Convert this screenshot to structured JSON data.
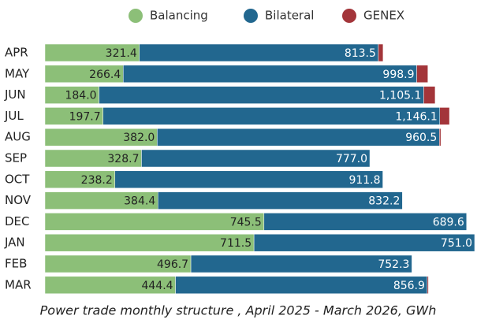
{
  "chart_data": {
    "type": "stacked-bar-horizontal",
    "caption": "Power trade monthly structure , April 2025 - March 2026, GWh",
    "categories": [
      "APR",
      "MAY",
      "JUN",
      "JUL",
      "AUG",
      "SEP",
      "OCT",
      "NOV",
      "DEC",
      "JAN",
      "FEB",
      "MAR"
    ],
    "series": [
      {
        "name": "Balancing",
        "color": "#8cbf78",
        "values": [
          321.4,
          266.4,
          184.0,
          197.7,
          382.0,
          328.7,
          238.2,
          384.4,
          745.5,
          711.5,
          496.7,
          444.4
        ],
        "value_labels": [
          "321.4",
          "266.4",
          "184.0",
          "197.7",
          "382.0",
          "328.7",
          "238.2",
          "384.4",
          "745.5",
          "711.5",
          "496.7",
          "444.4"
        ]
      },
      {
        "name": "Bilateral",
        "color": "#22678f",
        "values": [
          813.5,
          998.9,
          1105.1,
          1146.1,
          960.5,
          777.0,
          911.8,
          832.2,
          689.6,
          751.0,
          752.3,
          856.9
        ],
        "value_labels": [
          "813.5",
          "998.9",
          "1,105.1",
          "1,146.1",
          "960.5",
          "777.0",
          "911.8",
          "832.2",
          "689.6",
          "751.0",
          "752.3",
          "856.9"
        ]
      },
      {
        "name": "GENEX",
        "color": "#a3353a",
        "values": [
          16,
          38,
          39,
          33,
          5,
          0,
          0,
          0,
          0,
          0,
          0,
          4
        ]
      }
    ],
    "legend": "top"
  }
}
